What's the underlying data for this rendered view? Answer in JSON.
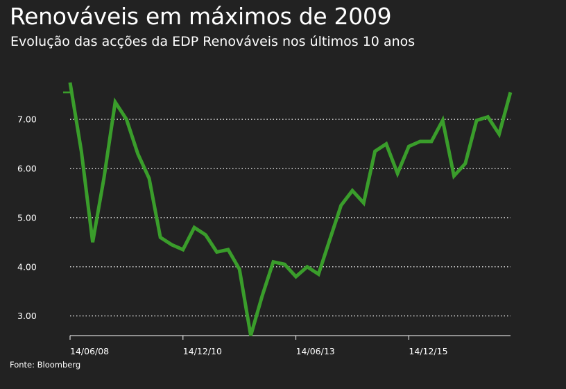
{
  "title": "Renováveis em máximos de 2009",
  "subtitle": "Evolução das acções da EDP Renováveis nos últimos 10 anos",
  "source": "Fonte: Bloomberg",
  "colors": {
    "background": "#222222",
    "line": "#3a9d2b",
    "grid": "#ffffff",
    "text": "#ffffff"
  },
  "chart_data": {
    "type": "line",
    "title": "Renováveis em máximos de 2009",
    "subtitle": "Evolução das acções da EDP Renováveis nos últimos 10 anos",
    "xlabel": "",
    "ylabel": "",
    "ylim": [
      2.6,
      7.75
    ],
    "y_ticks": [
      3.0,
      4.0,
      5.0,
      6.0,
      7.0
    ],
    "y_tick_labels": [
      "3.00",
      "4.00",
      "5.00",
      "6.00",
      "7.00"
    ],
    "x_tick_labels": [
      "14/06/08",
      "14/12/10",
      "14/06/13",
      "14/12/15"
    ],
    "x_tick_index": [
      0,
      10,
      20,
      30
    ],
    "grid": "horizontal dotted",
    "last_value_marker": 7.55,
    "series": [
      {
        "values": [
          7.75,
          6.35,
          4.5,
          5.8,
          7.35,
          7.0,
          6.3,
          5.8,
          4.6,
          4.45,
          4.35,
          4.8,
          4.65,
          4.3,
          4.35,
          3.95,
          2.6,
          3.4,
          4.1,
          4.05,
          3.8,
          4.0,
          3.85,
          4.55,
          5.25,
          5.55,
          5.3,
          6.35,
          6.5,
          5.9,
          6.45,
          6.55,
          6.55,
          6.98,
          5.85,
          6.1,
          6.98,
          7.05,
          6.7,
          7.55
        ]
      }
    ]
  }
}
